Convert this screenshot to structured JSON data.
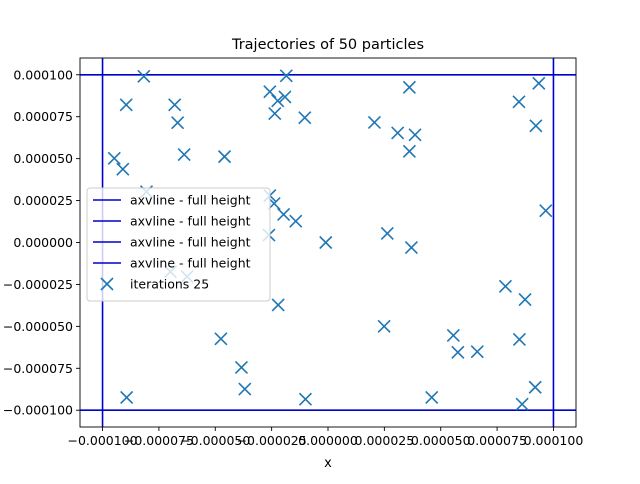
{
  "chart_data": {
    "type": "scatter",
    "title": "Trajectories of 50 particles",
    "xlabel": "x",
    "ylabel": "",
    "xlim": [
      -0.00011,
      0.00011
    ],
    "ylim": [
      -0.00011,
      0.00011
    ],
    "x_ticks": [
      -0.0001,
      -7.5e-05,
      -5e-05,
      -2.5e-05,
      0.0,
      2.5e-05,
      5e-05,
      7.5e-05,
      0.0001
    ],
    "x_tick_labels": [
      "−0.000100",
      "−0.000075",
      "−0.000050",
      "−0.000025",
      "0.000000",
      "0.000025",
      "0.000050",
      "0.000075",
      "0.000100"
    ],
    "y_ticks": [
      -0.0001,
      -7.5e-05,
      -5e-05,
      -2.5e-05,
      0.0,
      2.5e-05,
      5e-05,
      7.5e-05,
      0.0001
    ],
    "y_tick_labels": [
      "−0.000100",
      "−0.000075",
      "−0.000050",
      "−0.000025",
      "0.000000",
      "0.000025",
      "0.000050",
      "0.000075",
      "0.000100"
    ],
    "grid": false,
    "legend": {
      "placement": "center-left",
      "entries": [
        {
          "label": "axvline - full height",
          "marker": "line",
          "color": "#0000cc"
        },
        {
          "label": "axvline - full height",
          "marker": "line",
          "color": "#0000cc"
        },
        {
          "label": "axvline - full height",
          "marker": "line",
          "color": "#0000cc"
        },
        {
          "label": "axvline - full height",
          "marker": "line",
          "color": "#0000cc"
        },
        {
          "label": "iterations 25",
          "marker": "x",
          "color": "#1f77b4"
        }
      ]
    },
    "boundary_lines": {
      "vertical_x": [
        -0.0001,
        0.0001
      ],
      "horizontal_y": [
        -0.0001,
        0.0001
      ],
      "color": "#0000cc"
    },
    "series": [
      {
        "name": "iterations 25",
        "marker": "x",
        "color": "#1f77b4",
        "points": [
          [
            -8.95e-05,
            8.21e-05
          ],
          [
            -8.17e-05,
            9.91e-05
          ],
          [
            -6.8e-05,
            8.21e-05
          ],
          [
            -6.67e-05,
            7.14e-05
          ],
          [
            -6.38e-05,
            5.24e-05
          ],
          [
            -9.48e-05,
            5.02e-05
          ],
          [
            -9.1e-05,
            4.37e-05
          ],
          [
            -8.05e-05,
            3.03e-05
          ],
          [
            -4.59e-05,
            5.12e-05
          ],
          [
            -2.58e-05,
            8.99e-05
          ],
          [
            -2.23e-05,
            8.45e-05
          ],
          [
            -1.91e-05,
            8.68e-05
          ],
          [
            -2.36e-05,
            7.69e-05
          ],
          [
            -1.85e-05,
            9.94e-05
          ],
          [
            -1.03e-05,
            7.44e-05
          ],
          [
            2.06e-05,
            7.16e-05
          ],
          [
            3.09e-05,
            6.53e-05
          ],
          [
            3.86e-05,
            6.42e-05
          ],
          [
            3.61e-05,
            9.25e-05
          ],
          [
            3.61e-05,
            5.44e-05
          ],
          [
            8.47e-05,
            8.39e-05
          ],
          [
            9.35e-05,
            9.49e-05
          ],
          [
            9.22e-05,
            6.96e-05
          ],
          [
            9.66e-05,
            1.9e-05
          ],
          [
            -2.39e-05,
            2.32e-05
          ],
          [
            -1.97e-05,
            1.67e-05
          ],
          [
            -1.43e-05,
            1.27e-05
          ],
          [
            -2.58e-05,
            2.8e-05
          ],
          [
            -2.62e-05,
            4.4e-06
          ],
          [
            -1e-06,
            0.0
          ],
          [
            2.63e-05,
            5.4e-06
          ],
          [
            3.7e-05,
            -3e-06
          ],
          [
            -6.99e-05,
            -1.74e-05
          ],
          [
            -6.25e-05,
            -2.03e-05
          ],
          [
            -2.21e-05,
            -3.72e-05
          ],
          [
            -4.75e-05,
            -5.74e-05
          ],
          [
            -3.84e-05,
            -7.45e-05
          ],
          [
            -3.69e-05,
            -8.74e-05
          ],
          [
            -8.93e-05,
            -9.24e-05
          ],
          [
            -1e-05,
            -9.34e-05
          ],
          [
            2.49e-05,
            -5e-05
          ],
          [
            5.56e-05,
            -5.54e-05
          ],
          [
            5.76e-05,
            -6.55e-05
          ],
          [
            6.62e-05,
            -6.51e-05
          ],
          [
            4.6e-05,
            -9.24e-05
          ],
          [
            7.87e-05,
            -2.61e-05
          ],
          [
            8.74e-05,
            -3.4e-05
          ],
          [
            8.49e-05,
            -5.78e-05
          ],
          [
            9.19e-05,
            -8.63e-05
          ],
          [
            8.61e-05,
            -9.64e-05
          ]
        ]
      }
    ]
  }
}
